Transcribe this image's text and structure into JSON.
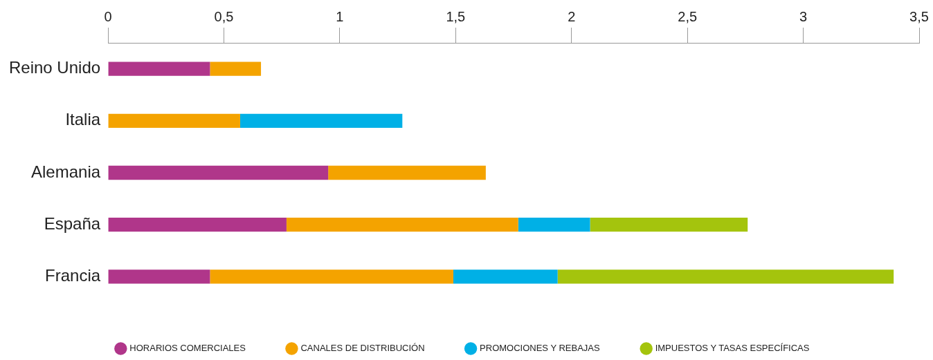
{
  "chart_data": {
    "type": "bar",
    "orientation": "horizontal",
    "stacked": true,
    "categories": [
      "Reino Unido",
      "Italia",
      "Alemania",
      "España",
      "Francia"
    ],
    "series": [
      {
        "name": "HORARIOS COMERCIALES",
        "color": "#b0368a",
        "values": [
          0.44,
          0,
          0.95,
          0.77,
          0.44
        ]
      },
      {
        "name": "CANALES DE DISTRIBUCIÓN",
        "color": "#f4a300",
        "values": [
          0.22,
          0.57,
          0.68,
          1.0,
          1.05
        ]
      },
      {
        "name": "PROMOCIONES Y REBAJAS",
        "color": "#00b0e6",
        "values": [
          0,
          0.7,
          0,
          0.31,
          0.45
        ]
      },
      {
        "name": "IMPUESTOS Y TASAS ESPECÍFICAS",
        "color": "#a4c40d",
        "values": [
          0,
          0,
          0,
          0.68,
          1.45
        ]
      }
    ],
    "xlim": [
      0,
      3.5
    ],
    "xticks": [
      0,
      {
        "value": 0.5,
        "label": "0,5"
      },
      1,
      {
        "value": 1.5,
        "label": "1,5"
      },
      2,
      {
        "value": 2.5,
        "label": "2,5"
      },
      3,
      {
        "value": 3.5,
        "label": "3,5"
      }
    ],
    "grid": false,
    "legend": "bottom"
  }
}
